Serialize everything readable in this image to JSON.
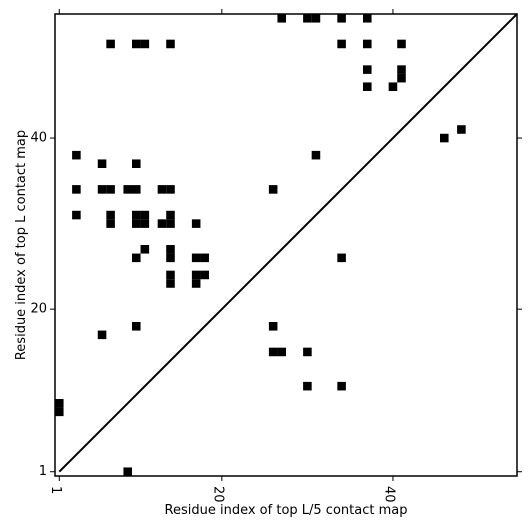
{
  "chart_data": {
    "type": "heatmap",
    "title": "",
    "xlabel": "Residue index of top L/5 contact map",
    "ylabel": "Residue index of top L contact map",
    "xlim": [
      0.5,
      54.5
    ],
    "ylim": [
      0.5,
      54.5
    ],
    "xticks": [
      1,
      20,
      40
    ],
    "yticks": [
      1,
      20,
      40
    ],
    "tick_labels_x": [
      "1",
      "20",
      "40"
    ],
    "tick_labels_y": [
      "1",
      "20",
      "40"
    ],
    "diagonal": true,
    "cell_color": "#000000",
    "contacts": [
      [
        1,
        9
      ],
      [
        9,
        1
      ],
      [
        54,
        27
      ],
      [
        54,
        30
      ],
      [
        54,
        31
      ],
      [
        54,
        34
      ],
      [
        54,
        37
      ],
      [
        51,
        7
      ],
      [
        51,
        10
      ],
      [
        51,
        11
      ],
      [
        51,
        14
      ],
      [
        51,
        34
      ],
      [
        51,
        37
      ],
      [
        51,
        41
      ],
      [
        48,
        37
      ],
      [
        48,
        41
      ],
      [
        47,
        41
      ],
      [
        46,
        37
      ],
      [
        46,
        40
      ],
      [
        41,
        48
      ],
      [
        40,
        46
      ],
      [
        38,
        3
      ],
      [
        38,
        31
      ],
      [
        37,
        6
      ],
      [
        37,
        10
      ],
      [
        34,
        3
      ],
      [
        34,
        6
      ],
      [
        34,
        7
      ],
      [
        34,
        9
      ],
      [
        34,
        10
      ],
      [
        34,
        13
      ],
      [
        34,
        14
      ],
      [
        34,
        26
      ],
      [
        31,
        3
      ],
      [
        31,
        7
      ],
      [
        31,
        10
      ],
      [
        31,
        11
      ],
      [
        31,
        14
      ],
      [
        30,
        7
      ],
      [
        30,
        10
      ],
      [
        30,
        11
      ],
      [
        30,
        13
      ],
      [
        30,
        14
      ],
      [
        30,
        17
      ],
      [
        27,
        11
      ],
      [
        27,
        14
      ],
      [
        26,
        10
      ],
      [
        26,
        14
      ],
      [
        26,
        17
      ],
      [
        26,
        18
      ],
      [
        26,
        34
      ],
      [
        24,
        14
      ],
      [
        24,
        17
      ],
      [
        24,
        18
      ],
      [
        23,
        14
      ],
      [
        23,
        17
      ],
      [
        18,
        10
      ],
      [
        18,
        26
      ],
      [
        17,
        6
      ],
      [
        15,
        26
      ],
      [
        15,
        27
      ],
      [
        15,
        30
      ],
      [
        11,
        30
      ],
      [
        11,
        34
      ],
      [
        8,
        1
      ]
    ]
  }
}
